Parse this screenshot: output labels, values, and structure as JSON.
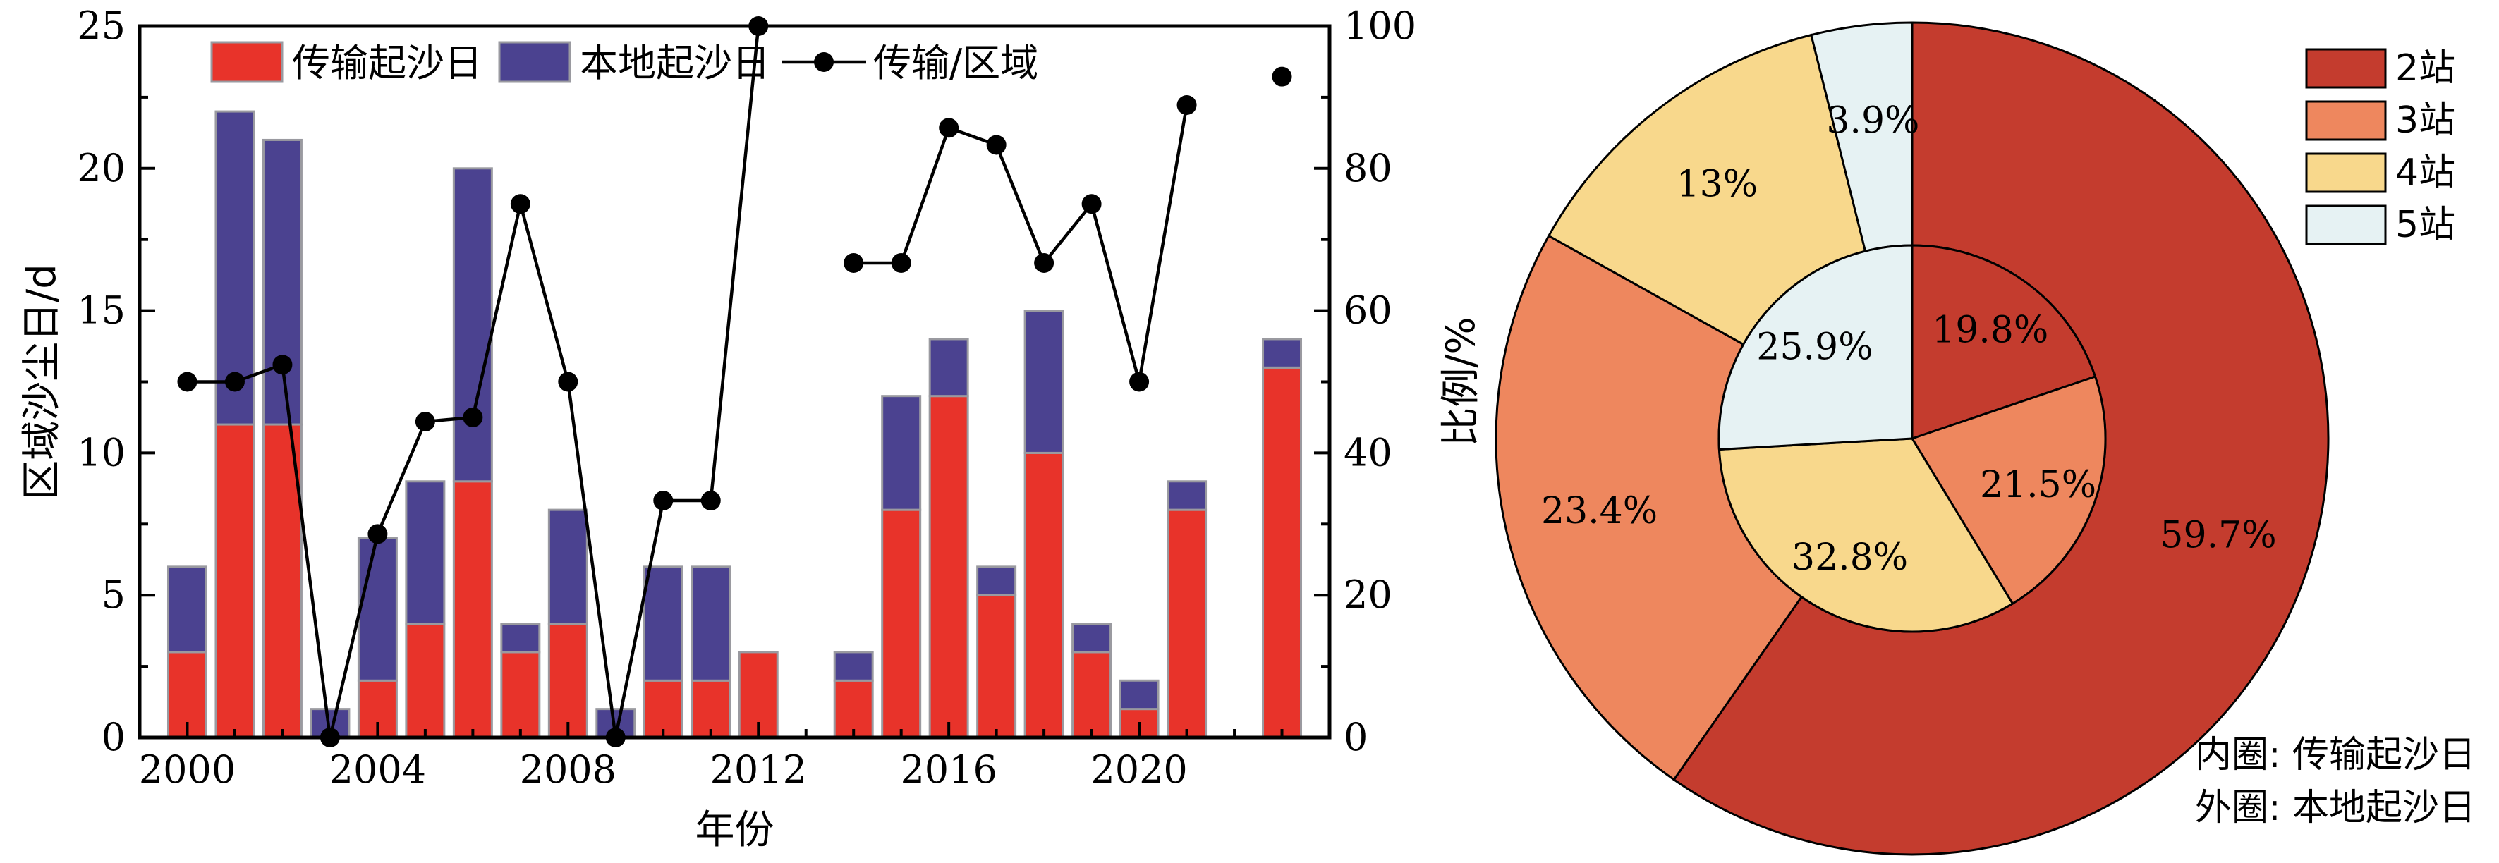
{
  "chart_data": [
    {
      "type": "bar",
      "stacked": true,
      "xlabel": "年份",
      "ylabel_left": "区域沙尘日/d",
      "ylabel_right": "比例/%",
      "ylim_left": [
        0,
        25
      ],
      "ylim_right": [
        0,
        100
      ],
      "xlim": [
        1999,
        2024
      ],
      "x_ticks": [
        "2000",
        "2004",
        "2008",
        "2012",
        "2016",
        "2020"
      ],
      "y_ticks_left": [
        "0",
        "5",
        "10",
        "15",
        "20",
        "25"
      ],
      "y_ticks_right": [
        "0",
        "20",
        "40",
        "60",
        "80",
        "100"
      ],
      "legend_position": "top-left",
      "x": [
        2000,
        2001,
        2002,
        2003,
        2004,
        2005,
        2006,
        2007,
        2008,
        2009,
        2010,
        2011,
        2012,
        2013,
        2014,
        2015,
        2016,
        2017,
        2018,
        2019,
        2020,
        2021,
        2022,
        2023
      ],
      "series": [
        {
          "name": "传输起沙日",
          "kind": "bar",
          "color": "#e8332a",
          "values": [
            3,
            11,
            11,
            0,
            2,
            4,
            9,
            3,
            4,
            0,
            2,
            2,
            3,
            0,
            2,
            8,
            12,
            5,
            10,
            3,
            1,
            8,
            0,
            13
          ]
        },
        {
          "name": "本地起沙日",
          "kind": "bar",
          "color": "#4b4290",
          "values": [
            3,
            11,
            10,
            1,
            5,
            5,
            11,
            1,
            4,
            1,
            4,
            4,
            0,
            0,
            1,
            4,
            2,
            1,
            5,
            1,
            1,
            1,
            0,
            1
          ]
        },
        {
          "name": "传输/区域",
          "kind": "line",
          "axis": "right",
          "color": "#000000",
          "values": [
            50,
            50,
            52.4,
            0,
            28.6,
            44.4,
            45,
            75,
            50,
            0,
            33.3,
            33.3,
            100,
            null,
            66.7,
            66.7,
            85.7,
            83.3,
            66.7,
            75,
            50,
            88.9,
            null,
            92.9
          ]
        }
      ]
    },
    {
      "type": "pie",
      "donut": true,
      "legend_position": "top-right",
      "categories": [
        "2站",
        "3站",
        "4站",
        "5站"
      ],
      "colors": [
        "#c43c2e",
        "#ee875e",
        "#f8d88c",
        "#e6f2f3"
      ],
      "outer": {
        "values": [
          59.7,
          23.4,
          13,
          3.9
        ],
        "labels": [
          "59.7%",
          "23.4%",
          "13%",
          "3.9%"
        ]
      },
      "inner": {
        "values": [
          19.8,
          21.5,
          32.8,
          25.9
        ],
        "labels": [
          "19.8%",
          "21.5%",
          "32.8%",
          "25.9%"
        ]
      },
      "annotation_inner": "内圈: 传输起沙日",
      "annotation_outer": "外圈: 本地起沙日"
    }
  ]
}
